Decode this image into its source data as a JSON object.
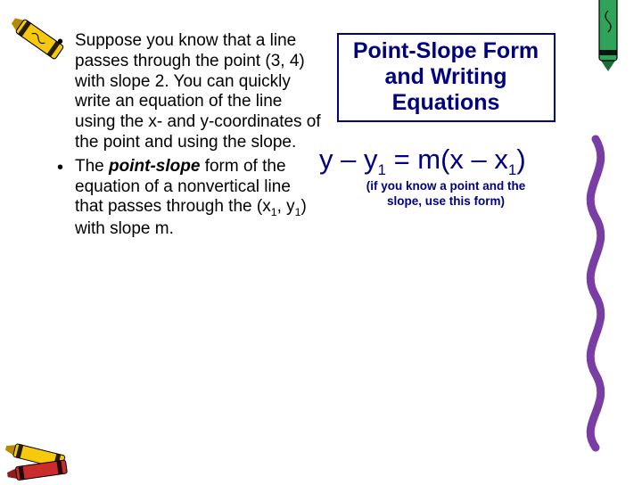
{
  "colors": {
    "text": "#000000",
    "accent": "#000080",
    "background": "#ffffff",
    "crayon_yellow_body": "#f6c90e",
    "crayon_yellow_tip": "#b68b00",
    "crayon_green_body": "#2fa35a",
    "crayon_green_tip": "#1d6b3a",
    "crayon_red_body": "#cc2b2b",
    "crayon_red_tip": "#8f1b1b",
    "crayon_purple": "#7a3da3"
  },
  "left": {
    "bullets": [
      "Suppose you know that a line passes through the point (3, 4) with slope 2. You can quickly write an equation of the line using the x- and y-coordinates of the point and using the slope.",
      "The __BI__point-slope__/BI__ form of the equation of a nonvertical line that passes through the (x__SUB__1__/SUB__, y__SUB__1__/SUB__) with slope m."
    ]
  },
  "right": {
    "title_lines": [
      "Point-Slope Form",
      "and Writing",
      "Equations"
    ],
    "formula": "y – y__SUB__1__/SUB__ = m(x – x__SUB__1__/SUB__)",
    "note_lines": [
      "(if you know a point and the",
      "slope, use this form)"
    ]
  }
}
